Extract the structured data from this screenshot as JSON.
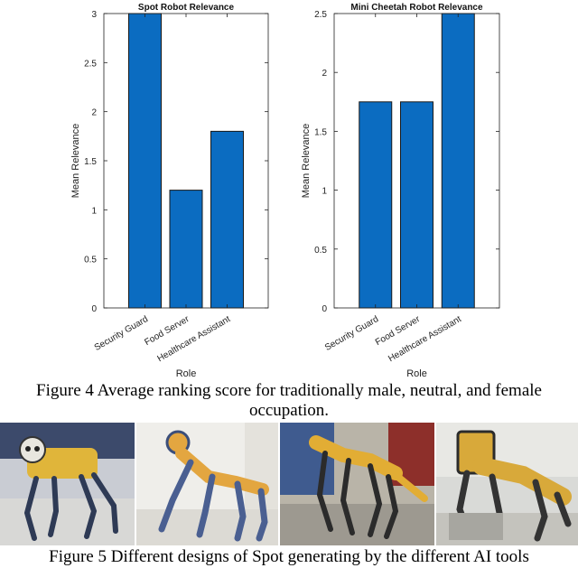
{
  "chart_data": [
    {
      "type": "bar",
      "title": "Spot Robot Relevance",
      "xlabel": "Role",
      "ylabel": "Mean Relevance",
      "categories": [
        "Security Guard",
        "Food Server",
        "Healthcare Assistant"
      ],
      "values": [
        3.0,
        1.2,
        1.8
      ],
      "ylim": [
        0,
        3
      ],
      "yticks": [
        "0",
        "0.5",
        "1",
        "1.5",
        "2",
        "2.5",
        "3"
      ],
      "bar_color": "#0b6cc1",
      "grid": false
    },
    {
      "type": "bar",
      "title": "Mini Cheetah Robot Relevance",
      "xlabel": "Role",
      "ylabel": "Mean Relevance",
      "categories": [
        "Security Guard",
        "Food Server",
        "Healthcare Assistant"
      ],
      "values": [
        1.75,
        1.75,
        2.5
      ],
      "ylim": [
        0,
        2.5
      ],
      "yticks": [
        "0",
        "0.5",
        "1",
        "1.5",
        "2",
        "2.5"
      ],
      "bar_color": "#0b6cc1",
      "grid": false
    }
  ],
  "captions": {
    "figure4": "Figure 4 Average ranking score for traditionally male, neutral, and female occupation.",
    "figure5": "Figure 5 Different designs of Spot generating by the different AI tools"
  },
  "photos": [
    {
      "name": "robot-photo-1"
    },
    {
      "name": "robot-photo-2"
    },
    {
      "name": "robot-photo-3"
    },
    {
      "name": "robot-photo-4"
    }
  ]
}
